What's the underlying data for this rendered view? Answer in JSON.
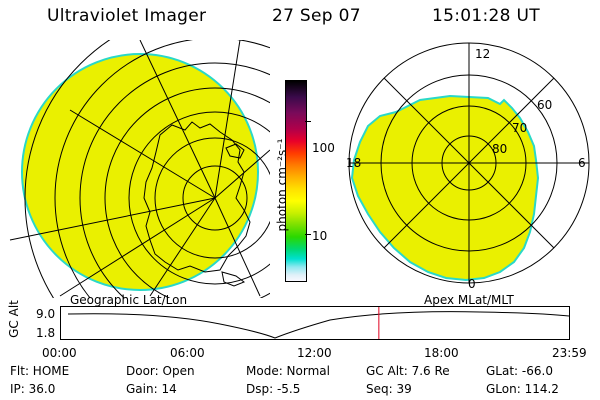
{
  "header": {
    "instrument": "Ultraviolet Imager",
    "date": "27 Sep 07",
    "time": "15:01:28 UT"
  },
  "left_panel": {
    "label": "Geographic Lat/Lon"
  },
  "right_panel": {
    "label": "Apex MLat/MLT",
    "mlt_labels": [
      "12",
      "18",
      "6",
      "0"
    ],
    "mlat_labels": [
      "60",
      "70",
      "80"
    ]
  },
  "colorbar": {
    "unit_label": "photon cm⁻²s⁻¹",
    "ticks": [
      "100",
      "10"
    ],
    "colors": [
      "#000000",
      "#3a0a4a",
      "#7a0a5a",
      "#b0004a",
      "#e8002a",
      "#ff3a00",
      "#ff7a00",
      "#ffb000",
      "#ffe000",
      "#ffff00",
      "#c8f000",
      "#7ae000",
      "#2ad800",
      "#00d870",
      "#00e0d0",
      "#90e8f0",
      "#e0f0f8",
      "#f8f8ff"
    ]
  },
  "timeline": {
    "axis_label": "GC Alt",
    "y_ticks": [
      "9.0",
      "1.8"
    ],
    "x_ticks": [
      "00:00",
      "06:00",
      "12:00",
      "18:00",
      "23:59"
    ],
    "marker_time": "15:01",
    "marker_color": "#e00020"
  },
  "info": {
    "row1": {
      "filter": "Flt: HOME",
      "door": "Door: Open",
      "mode": "Mode: Normal",
      "gc_alt": "GC Alt: 7.6 Re",
      "glat": "GLat:  -66.0"
    },
    "row2": {
      "ip": "IP: 36.0",
      "gain": "Gain: 14",
      "dsp": "Dsp:     -5.5",
      "seq": "Seq: 39",
      "glon": "GLon: 114.2"
    }
  },
  "image_color": "#eaf000",
  "edge_color": "#2ad8c8"
}
